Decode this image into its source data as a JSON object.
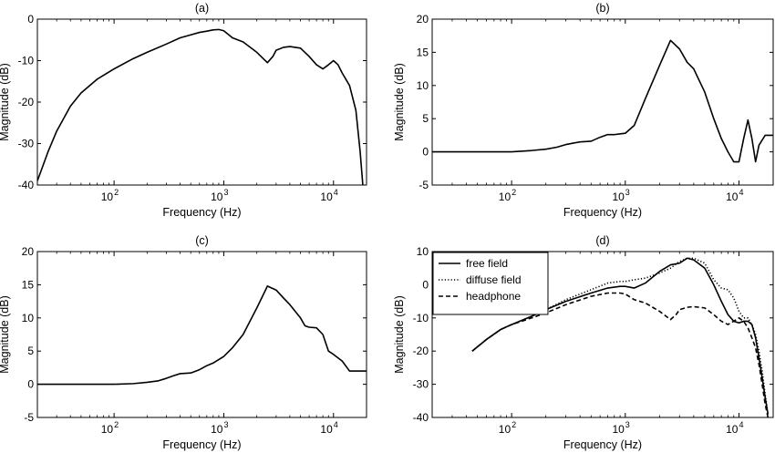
{
  "chart_data": [
    {
      "id": "a",
      "type": "line",
      "title": "(a)",
      "xlabel": "Frequency (Hz)",
      "ylabel": "Magnitude (dB)",
      "xscale": "log",
      "xlim": [
        20,
        20000
      ],
      "ylim": [
        -40,
        0
      ],
      "xticks": [
        {
          "v": 100,
          "base": "10",
          "exp": "2"
        },
        {
          "v": 1000,
          "base": "10",
          "exp": "3"
        },
        {
          "v": 10000,
          "base": "10",
          "exp": "4"
        }
      ],
      "yticks": [
        {
          "v": 0,
          "label": "0"
        },
        {
          "v": -10,
          "label": "-10"
        },
        {
          "v": -20,
          "label": "-20"
        },
        {
          "v": -30,
          "label": "-30"
        },
        {
          "v": -40,
          "label": "-40"
        }
      ],
      "grid": false,
      "series": [
        {
          "style": "solid",
          "x": [
            20,
            25,
            30,
            40,
            50,
            70,
            100,
            150,
            200,
            300,
            400,
            500,
            600,
            700,
            800,
            900,
            1000,
            1200,
            1500,
            2000,
            2500,
            2800,
            3000,
            3500,
            4000,
            5000,
            6000,
            7000,
            8000,
            9000,
            10000,
            11000,
            12000,
            14000,
            16000,
            17500,
            18500
          ],
          "y": [
            -39,
            -32,
            -27,
            -21,
            -17.8,
            -14.5,
            -12,
            -9.5,
            -8,
            -6,
            -4.5,
            -3.8,
            -3.2,
            -2.9,
            -2.6,
            -2.5,
            -2.8,
            -4.5,
            -5.5,
            -8,
            -10.5,
            -9,
            -7.5,
            -6.8,
            -6.6,
            -7,
            -9,
            -11,
            -12,
            -11,
            -10,
            -11,
            -13,
            -16,
            -22,
            -32,
            -40
          ]
        }
      ]
    },
    {
      "id": "b",
      "type": "line",
      "title": "(b)",
      "xlabel": "Frequency (Hz)",
      "ylabel": "Magnitude (dB)",
      "xscale": "log",
      "xlim": [
        20,
        20000
      ],
      "ylim": [
        -5,
        20
      ],
      "xticks": [
        {
          "v": 100,
          "base": "10",
          "exp": "2"
        },
        {
          "v": 1000,
          "base": "10",
          "exp": "3"
        },
        {
          "v": 10000,
          "base": "10",
          "exp": "4"
        }
      ],
      "yticks": [
        {
          "v": 20,
          "label": "20"
        },
        {
          "v": 15,
          "label": "15"
        },
        {
          "v": 10,
          "label": "10"
        },
        {
          "v": 5,
          "label": "5"
        },
        {
          "v": 0,
          "label": "0"
        },
        {
          "v": -5,
          "label": "-5"
        }
      ],
      "grid": false,
      "series": [
        {
          "style": "solid",
          "x": [
            20,
            100,
            150,
            200,
            250,
            300,
            400,
            500,
            600,
            700,
            800,
            1000,
            1200,
            1500,
            2000,
            2500,
            3000,
            3500,
            4000,
            5000,
            6000,
            7000,
            8000,
            9000,
            10000,
            11000,
            12000,
            13000,
            14000,
            15000,
            17000,
            20000
          ],
          "y": [
            0,
            0,
            0.2,
            0.4,
            0.7,
            1.1,
            1.5,
            1.6,
            2.2,
            2.6,
            2.6,
            2.8,
            4,
            8,
            13,
            16.8,
            15.5,
            13.5,
            12.5,
            9,
            5,
            2,
            0,
            -1.5,
            -1.5,
            2,
            4.8,
            2,
            -1.5,
            1,
            2.5,
            2.5
          ]
        }
      ]
    },
    {
      "id": "c",
      "type": "line",
      "title": "(c)",
      "xlabel": "Frequency (Hz)",
      "ylabel": "Magnitude (dB)",
      "xscale": "log",
      "xlim": [
        20,
        20000
      ],
      "ylim": [
        -5,
        20
      ],
      "xticks": [
        {
          "v": 100,
          "base": "10",
          "exp": "2"
        },
        {
          "v": 1000,
          "base": "10",
          "exp": "3"
        },
        {
          "v": 10000,
          "base": "10",
          "exp": "4"
        }
      ],
      "yticks": [
        {
          "v": 20,
          "label": "20"
        },
        {
          "v": 15,
          "label": "15"
        },
        {
          "v": 10,
          "label": "10"
        },
        {
          "v": 5,
          "label": "5"
        },
        {
          "v": 0,
          "label": "0"
        },
        {
          "v": -5,
          "label": "-5"
        }
      ],
      "grid": false,
      "series": [
        {
          "style": "solid",
          "x": [
            20,
            100,
            150,
            200,
            250,
            300,
            350,
            400,
            500,
            600,
            700,
            800,
            1000,
            1200,
            1500,
            2000,
            2500,
            3000,
            3500,
            4000,
            5000,
            5500,
            6000,
            7000,
            8000,
            9000,
            10000,
            12000,
            14000,
            16000,
            20000
          ],
          "y": [
            0,
            0,
            0.1,
            0.3,
            0.5,
            0.9,
            1.3,
            1.6,
            1.7,
            2.2,
            2.8,
            3.2,
            4.2,
            5.5,
            7.5,
            11.5,
            14.8,
            14.2,
            13,
            12,
            10,
            8.8,
            8.6,
            8.5,
            7.5,
            5,
            4.5,
            3.5,
            2,
            2,
            2
          ]
        }
      ]
    },
    {
      "id": "d",
      "type": "line",
      "title": "(d)",
      "xlabel": "Frequency (Hz)",
      "ylabel": "Magnitude (dB)",
      "xscale": "log",
      "xlim": [
        20,
        20000
      ],
      "ylim": [
        -40,
        10
      ],
      "xticks": [
        {
          "v": 100,
          "base": "10",
          "exp": "2"
        },
        {
          "v": 1000,
          "base": "10",
          "exp": "3"
        },
        {
          "v": 10000,
          "base": "10",
          "exp": "4"
        }
      ],
      "yticks": [
        {
          "v": 10,
          "label": "10"
        },
        {
          "v": 0,
          "label": "0"
        },
        {
          "v": -10,
          "label": "-10"
        },
        {
          "v": -20,
          "label": "-20"
        },
        {
          "v": -30,
          "label": "-30"
        },
        {
          "v": -40,
          "label": "-40"
        }
      ],
      "grid": false,
      "legend": "top-left",
      "series": [
        {
          "name": "free field",
          "style": "solid",
          "x": [
            45,
            60,
            80,
            100,
            150,
            200,
            300,
            500,
            700,
            900,
            1000,
            1200,
            1500,
            2000,
            2500,
            3000,
            3500,
            4000,
            5000,
            6000,
            7000,
            8000,
            9000,
            10000,
            11000,
            12000,
            13000,
            14000,
            15000,
            16000,
            17000,
            18000
          ],
          "y": [
            -20,
            -16.5,
            -13.5,
            -12,
            -9.5,
            -7.5,
            -5,
            -2.5,
            -1,
            -0.5,
            -0.5,
            -1,
            0.5,
            4,
            6,
            6.5,
            8,
            7.5,
            5,
            0,
            -5,
            -9,
            -11,
            -11.5,
            -11,
            -11,
            -12,
            -16,
            -22,
            -28,
            -34,
            -39
          ]
        },
        {
          "name": "diffuse field",
          "style": "dotted",
          "x": [
            45,
            60,
            80,
            100,
            150,
            200,
            300,
            500,
            700,
            900,
            1000,
            1200,
            1500,
            2000,
            2500,
            3000,
            3500,
            4000,
            5000,
            6000,
            7000,
            8000,
            9000,
            10000,
            11000,
            12000,
            13000,
            14000,
            15000,
            16000,
            17000,
            18000
          ],
          "y": [
            -20,
            -16.5,
            -13.5,
            -12,
            -9.5,
            -7.5,
            -4.5,
            -1.5,
            0.5,
            1,
            1,
            1.5,
            2,
            3.5,
            5,
            7,
            8,
            8,
            6.5,
            1.5,
            -1,
            -1.5,
            -4,
            -8,
            -10,
            -10,
            -12,
            -15,
            -20,
            -26,
            -33,
            -39
          ]
        },
        {
          "name": "headphone",
          "style": "dashed",
          "x": [
            45,
            60,
            80,
            100,
            150,
            200,
            300,
            500,
            700,
            900,
            1000,
            1200,
            1500,
            2000,
            2500,
            2800,
            3000,
            3500,
            4000,
            5000,
            6000,
            7000,
            8000,
            9000,
            10000,
            11000,
            12000,
            13000,
            14000,
            15000,
            16000,
            17000,
            18000
          ],
          "y": [
            -20,
            -16.5,
            -13.5,
            -12,
            -10,
            -8.5,
            -6,
            -3.5,
            -2.5,
            -2.5,
            -2.8,
            -4.5,
            -5.5,
            -8,
            -10.5,
            -9,
            -7.5,
            -6.8,
            -6.6,
            -7,
            -9,
            -11,
            -12,
            -11,
            -10,
            -11,
            -13,
            -16,
            -19,
            -24,
            -30,
            -36,
            -40
          ]
        }
      ]
    }
  ]
}
